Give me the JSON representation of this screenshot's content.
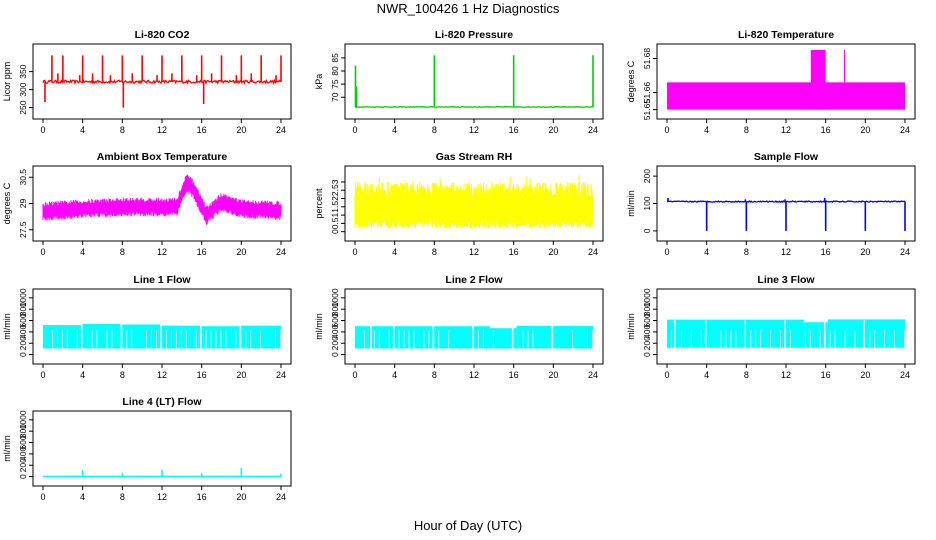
{
  "page": {
    "title": "NWR_100426  1 Hz Diagnostics",
    "x_caption": "Hour of Day (UTC)"
  },
  "colors": {
    "red": "#ff0000",
    "green": "#00cd00",
    "magenta": "#ff00ff",
    "yellow": "#ffff00",
    "blue": "#0000ff",
    "cyan": "#00ffff",
    "axis": "#000000"
  },
  "chart_data": [
    {
      "type": "line",
      "title": "Li-820 CO2",
      "ylabel": "Licor ppm",
      "color": "red",
      "xlim": [
        0,
        24
      ],
      "xticks": [
        0,
        4,
        8,
        12,
        16,
        20,
        24
      ],
      "ylim": [
        235,
        410
      ],
      "yticks": [
        250,
        300,
        350
      ],
      "generator": {
        "kind": "baseline_spikes",
        "base": 322,
        "noise": 4,
        "spikes": [
          [
            0.2,
            265
          ],
          [
            0.9,
            395
          ],
          [
            1.5,
            345
          ],
          [
            2,
            395
          ],
          [
            3.7,
            340
          ],
          [
            4,
            395
          ],
          [
            5,
            345
          ],
          [
            6,
            395
          ],
          [
            6.8,
            340
          ],
          [
            8,
            395
          ],
          [
            8.1,
            250
          ],
          [
            9,
            345
          ],
          [
            10,
            395
          ],
          [
            11.5,
            340
          ],
          [
            12,
            395
          ],
          [
            13,
            345
          ],
          [
            14,
            395
          ],
          [
            15.5,
            340
          ],
          [
            16,
            395
          ],
          [
            16.2,
            260
          ],
          [
            17,
            345
          ],
          [
            18,
            395
          ],
          [
            19.5,
            340
          ],
          [
            20,
            395
          ],
          [
            21,
            345
          ],
          [
            22,
            395
          ],
          [
            23.5,
            340
          ],
          [
            24,
            395
          ]
        ]
      }
    },
    {
      "type": "line",
      "title": "Li-820 Pressure",
      "ylabel": "kPa",
      "color": "green",
      "xlim": [
        0,
        24
      ],
      "xticks": [
        0,
        4,
        8,
        12,
        16,
        20,
        24
      ],
      "ylim": [
        64,
        88
      ],
      "yticks": [
        70,
        75,
        80,
        85
      ],
      "generator": {
        "kind": "baseline_spikes",
        "base": 66.3,
        "noise": 0.1,
        "spikes": [
          [
            0.05,
            82
          ],
          [
            0.15,
            74
          ],
          [
            8,
            86
          ],
          [
            16,
            86
          ],
          [
            24,
            86
          ]
        ]
      }
    },
    {
      "type": "area",
      "title": "Li-820 Temperature",
      "ylabel": "degrees C",
      "color": "magenta",
      "xlim": [
        0,
        24
      ],
      "xticks": [
        0,
        4,
        8,
        12,
        16,
        20,
        24
      ],
      "ylim": [
        51.648,
        51.685
      ],
      "yticks": [
        51.65,
        51.66,
        51.68
      ],
      "generator": {
        "kind": "band_blocks",
        "low": 51.65,
        "high": 51.666,
        "blocks": [
          [
            14.5,
            16,
            51.685
          ]
        ],
        "spikes": [
          [
            17.9,
            51.685
          ]
        ]
      }
    },
    {
      "type": "area",
      "title": "Ambient Box Temperature",
      "ylabel": "degrees C",
      "color": "magenta",
      "xlim": [
        0,
        24
      ],
      "xticks": [
        0,
        4,
        8,
        12,
        16,
        20,
        24
      ],
      "ylim": [
        27.2,
        30.8
      ],
      "yticks": [
        27.5,
        29,
        30.5
      ],
      "generator": {
        "kind": "band_curve",
        "half": 0.45,
        "curve": [
          [
            0,
            28.55
          ],
          [
            4,
            28.7
          ],
          [
            8,
            28.8
          ],
          [
            12,
            28.8
          ],
          [
            13.5,
            28.8
          ],
          [
            14.5,
            30.2
          ],
          [
            15.2,
            29.8
          ],
          [
            16.5,
            28.3
          ],
          [
            18,
            29.1
          ],
          [
            20,
            28.7
          ],
          [
            24,
            28.6
          ]
        ]
      }
    },
    {
      "type": "area",
      "title": "Gas Stream RH",
      "ylabel": "percent",
      "color": "yellow",
      "xlim": [
        0,
        24
      ],
      "xticks": [
        0,
        4,
        8,
        12,
        16,
        20,
        24
      ],
      "ylim": [
        -0.2,
        3.6
      ],
      "yticks": [
        0,
        0.5,
        1,
        1.5,
        2,
        2.5,
        3
      ],
      "generator": {
        "kind": "noise_band",
        "low": 0.2,
        "high": 3.0,
        "peak": 3.4
      }
    },
    {
      "type": "line",
      "title": "Sample Flow",
      "ylabel": "ml/min",
      "color": "blue",
      "xlim": [
        0,
        24
      ],
      "xticks": [
        0,
        4,
        8,
        12,
        16,
        20,
        24
      ],
      "ylim": [
        -15,
        215
      ],
      "yticks": [
        0,
        100,
        200
      ],
      "generator": {
        "kind": "baseline_spikes",
        "base": 107,
        "noise": 2,
        "spikes": [
          [
            0.1,
            120
          ],
          [
            4,
            0
          ],
          [
            8,
            0
          ],
          [
            7.9,
            115
          ],
          [
            12,
            0
          ],
          [
            11.9,
            115
          ],
          [
            16,
            0
          ],
          [
            15.9,
            120
          ],
          [
            20,
            0
          ],
          [
            24,
            0
          ]
        ]
      }
    },
    {
      "type": "area",
      "title": "Line 1 Flow",
      "ylabel": "ml/min",
      "color": "cyan",
      "xlim": [
        0,
        24
      ],
      "xticks": [
        0,
        4,
        8,
        12,
        16,
        20,
        24
      ],
      "ylim": [
        -60,
        1050
      ],
      "yticks": [
        0,
        200,
        400,
        600,
        800,
        1000
      ],
      "generator": {
        "kind": "flow_band",
        "low": 110,
        "levels": [
          [
            0,
            4,
            520
          ],
          [
            4,
            8,
            540
          ],
          [
            8,
            12,
            530
          ],
          [
            12,
            16,
            510
          ],
          [
            16,
            20,
            500
          ],
          [
            20,
            24,
            510
          ]
        ],
        "gaps": [
          3.9,
          7.9,
          11.9,
          15.9,
          19.9
        ]
      }
    },
    {
      "type": "area",
      "title": "Line 2 Flow",
      "ylabel": "ml/min",
      "color": "cyan",
      "xlim": [
        0,
        24
      ],
      "xticks": [
        0,
        4,
        8,
        12,
        16,
        20,
        24
      ],
      "ylim": [
        -60,
        1050
      ],
      "yticks": [
        0,
        200,
        400,
        600,
        800,
        1000
      ],
      "generator": {
        "kind": "flow_band",
        "low": 110,
        "levels": [
          [
            0,
            13.6,
            500
          ],
          [
            13.6,
            16.3,
            465
          ],
          [
            16.3,
            24,
            505
          ]
        ],
        "gaps": [
          1.6,
          3.9,
          7.9,
          11.9,
          15.9,
          19.9
        ]
      }
    },
    {
      "type": "area",
      "title": "Line 3 Flow",
      "ylabel": "ml/min",
      "color": "cyan",
      "xlim": [
        0,
        24
      ],
      "xticks": [
        0,
        4,
        8,
        12,
        16,
        20,
        24
      ],
      "ylim": [
        -60,
        1050
      ],
      "yticks": [
        0,
        200,
        400,
        600,
        800,
        1000
      ],
      "generator": {
        "kind": "flow_band",
        "low": 120,
        "levels": [
          [
            0,
            13.8,
            615
          ],
          [
            13.8,
            16.2,
            570
          ],
          [
            16.2,
            24,
            620
          ]
        ],
        "gaps": [
          0.8,
          3.9,
          7.9,
          11.9,
          15.9,
          19.9
        ]
      }
    },
    {
      "type": "line",
      "title": "Line 4 (LT) Flow",
      "ylabel": "ml/min",
      "color": "cyan",
      "xlim": [
        0,
        24
      ],
      "xticks": [
        0,
        4,
        8,
        12,
        16,
        20,
        24
      ],
      "ylim": [
        -60,
        1050
      ],
      "yticks": [
        0,
        200,
        400,
        600,
        800,
        1000
      ],
      "generator": {
        "kind": "baseline_spikes",
        "base": 5,
        "noise": 1,
        "spikes": [
          [
            4,
            120
          ],
          [
            8,
            60
          ],
          [
            12,
            120
          ],
          [
            16,
            60
          ],
          [
            20,
            150
          ],
          [
            24,
            50
          ]
        ]
      }
    }
  ]
}
